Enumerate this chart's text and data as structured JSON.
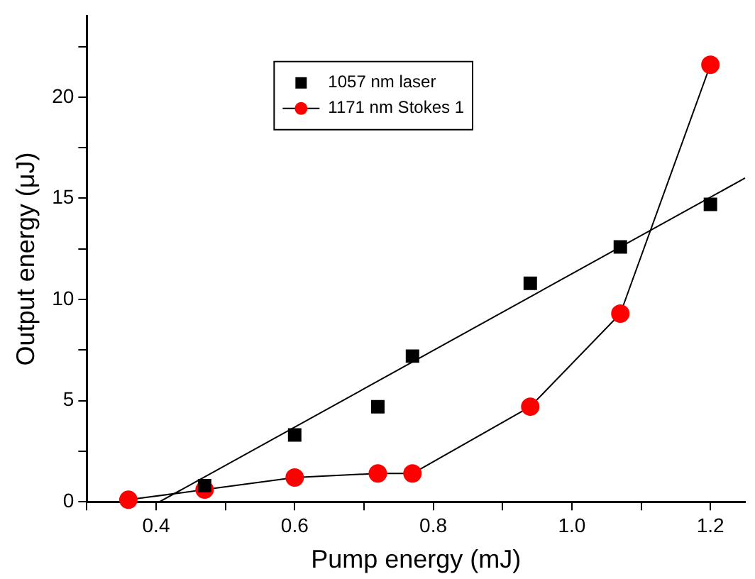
{
  "chart_data": {
    "type": "line",
    "xlabel": "Pump energy (mJ)",
    "ylabel": "Output energy (μJ)",
    "series": [
      {
        "type": "scatter",
        "name": "1057 nm laser",
        "color": "#000000",
        "marker": "square",
        "x": [
          0.47,
          0.6,
          0.72,
          0.77,
          0.94,
          1.07,
          1.2
        ],
        "values": [
          0.8,
          3.3,
          4.7,
          7.2,
          10.8,
          12.6,
          14.7
        ]
      },
      {
        "type": "line",
        "name": "1171 nm Stokes 1",
        "color": "#ff0000",
        "marker": "circle",
        "x": [
          0.36,
          0.47,
          0.6,
          0.72,
          0.77,
          0.94,
          1.07,
          1.2
        ],
        "values": [
          0.1,
          0.6,
          1.2,
          1.4,
          1.4,
          4.7,
          9.3,
          21.6
        ]
      },
      {
        "type": "line",
        "color": "#000000",
        "marker": "none",
        "x": [
          0.405,
          1.25
        ],
        "values": [
          0,
          16.0
        ]
      }
    ],
    "xlim": [
      0.3,
      1.25
    ],
    "ylim": [
      0,
      24
    ],
    "xticks": [
      {
        "value": 0.3,
        "label": null
      },
      0.4,
      {
        "value": 0.5,
        "label": null
      },
      0.6,
      {
        "value": 0.7,
        "label": null
      },
      0.8,
      {
        "value": 0.9,
        "label": null
      },
      {
        "value": 1.0,
        "label": "1.0"
      },
      {
        "value": 1.1,
        "label": null
      },
      1.2
    ],
    "yticks": [
      0,
      {
        "value": 2.5,
        "label": null
      },
      5,
      {
        "value": 7.5,
        "label": null
      },
      10,
      {
        "value": 12.5,
        "label": null
      },
      15,
      {
        "value": 17.5,
        "label": null
      },
      20,
      {
        "value": 22.5,
        "label": null
      }
    ],
    "legend": "top"
  }
}
